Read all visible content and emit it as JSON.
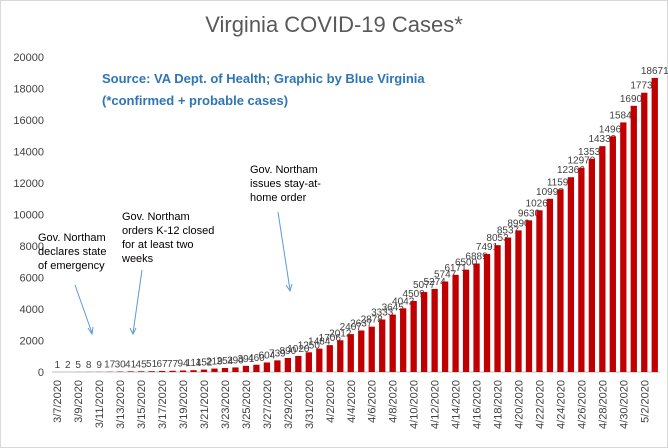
{
  "chart_data": {
    "type": "bar",
    "title": "Virginia COVID-19 Cases*",
    "subtitle": [
      "Source: VA Dept. of Health; Graphic by Blue Virginia",
      "(*confirmed + probable cases)"
    ],
    "annotations": [
      [
        "Gov. Northam",
        "declares state",
        "of emergency"
      ],
      [
        "Gov. Northam",
        "orders K-12 closed",
        "for at least two",
        "weeks"
      ],
      [
        "Gov. Northam",
        "issues stay-at-",
        "home order"
      ]
    ],
    "categories": [
      "3/7/2020",
      null,
      "3/9/2020",
      null,
      "3/11/2020",
      null,
      "3/13/2020",
      null,
      "3/15/2020",
      null,
      "3/17/2020",
      null,
      "3/19/2020",
      null,
      "3/21/2020",
      null,
      "3/23/2020",
      null,
      "3/25/2020",
      null,
      "3/27/2020",
      null,
      "3/29/2020",
      null,
      "3/31/2020",
      null,
      "4/2/2020",
      null,
      "4/4/2020",
      null,
      "4/6/2020",
      null,
      "4/8/2020",
      null,
      "4/10/2020",
      null,
      "4/12/2020",
      null,
      "4/14/2020",
      null,
      "4/16/2020",
      null,
      "4/18/2020",
      null,
      "4/20/2020",
      null,
      "4/22/2020",
      null,
      "4/24/2020",
      null,
      "4/26/2020",
      null,
      "4/28/2020",
      null,
      "4/30/2020",
      null,
      "5/2/2020",
      null
    ],
    "values": [
      1,
      2,
      5,
      8,
      9,
      17,
      30,
      41,
      45,
      51,
      67,
      77,
      94,
      114,
      152,
      219,
      254,
      290,
      391,
      460,
      604,
      739,
      890,
      1020,
      1250,
      1484,
      1706,
      2012,
      2407,
      2637,
      2878,
      3333,
      3645,
      4042,
      4509,
      5077,
      5274,
      5747,
      6171,
      6500,
      6889,
      7491,
      8053,
      8537,
      8990,
      9630,
      10266,
      10998,
      11594,
      12366,
      12970,
      13535,
      14339,
      14961,
      15846,
      16901,
      17731,
      18671
    ],
    "color": "#c00000",
    "ylim": [
      0,
      20000
    ],
    "yticks": [
      0,
      2000,
      4000,
      6000,
      8000,
      10000,
      12000,
      14000,
      16000,
      18000,
      20000
    ],
    "grid": false
  }
}
